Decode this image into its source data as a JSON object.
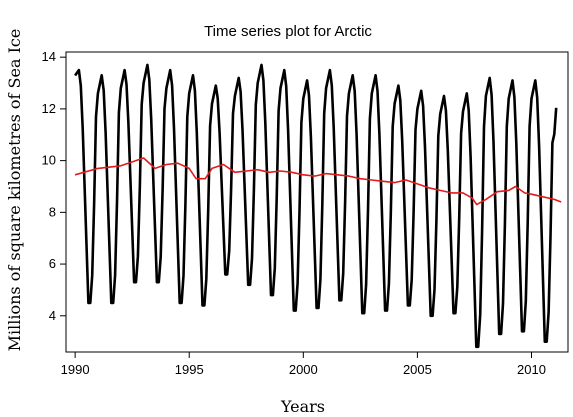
{
  "chart_data": {
    "type": "line",
    "title": "Time series plot for Arctic",
    "xlabel": "Years",
    "ylabel": "Millions of square kilometres of Sea Ice",
    "xlim": [
      1989.6,
      2011.6
    ],
    "ylim": [
      2.6,
      14.2
    ],
    "x_ticks": [
      "1990",
      "1995",
      "2000",
      "2005",
      "2010"
    ],
    "y_ticks": [
      "4",
      "6",
      "8",
      "10",
      "12",
      "14"
    ],
    "grid": false,
    "series": [
      {
        "color": "#000000",
        "start_year": 1990,
        "monthly_max_by_year": [
          13.5,
          13.3,
          13.5,
          13.7,
          13.5,
          13.3,
          12.9,
          13.2,
          13.7,
          13.5,
          13.1,
          13.5,
          13.3,
          13.3,
          12.9,
          12.7,
          12.5,
          12.6,
          13.2,
          13.1,
          13.1,
          12.4
        ],
        "monthly_min_by_year": [
          4.5,
          4.5,
          5.3,
          5.3,
          4.5,
          4.4,
          5.6,
          5.2,
          4.8,
          4.2,
          4.3,
          4.6,
          4.1,
          4.2,
          4.4,
          4.0,
          4.1,
          2.8,
          3.3,
          3.4,
          3.0,
          null
        ],
        "end_value": 12.4,
        "end_x": 2011.15
      },
      {
        "color": "#e31a1c",
        "points": [
          [
            1990,
            9.45
          ],
          [
            1991,
            9.7
          ],
          [
            1992,
            9.8
          ],
          [
            1993,
            10.1
          ],
          [
            1993.5,
            9.7
          ],
          [
            1994,
            9.85
          ],
          [
            1994.5,
            9.9
          ],
          [
            1995,
            9.7
          ],
          [
            1995.3,
            9.3
          ],
          [
            1995.7,
            9.3
          ],
          [
            1996,
            9.7
          ],
          [
            1996.5,
            9.85
          ],
          [
            1997,
            9.55
          ],
          [
            1997.5,
            9.6
          ],
          [
            1998,
            9.65
          ],
          [
            1998.5,
            9.55
          ],
          [
            1999,
            9.6
          ],
          [
            1999.5,
            9.55
          ],
          [
            2000,
            9.45
          ],
          [
            2000.5,
            9.4
          ],
          [
            2001,
            9.5
          ],
          [
            2001.5,
            9.45
          ],
          [
            2002,
            9.4
          ],
          [
            2002.5,
            9.3
          ],
          [
            2003,
            9.25
          ],
          [
            2003.5,
            9.2
          ],
          [
            2004,
            9.15
          ],
          [
            2004.5,
            9.25
          ],
          [
            2005,
            9.1
          ],
          [
            2005.5,
            8.95
          ],
          [
            2006,
            8.85
          ],
          [
            2006.5,
            8.75
          ],
          [
            2007,
            8.75
          ],
          [
            2007.4,
            8.55
          ],
          [
            2007.6,
            8.3
          ],
          [
            2008,
            8.5
          ],
          [
            2008.5,
            8.8
          ],
          [
            2009,
            8.85
          ],
          [
            2009.3,
            9.0
          ],
          [
            2009.7,
            8.75
          ],
          [
            2010,
            8.7
          ],
          [
            2010.5,
            8.6
          ],
          [
            2011,
            8.5
          ],
          [
            2011.3,
            8.4
          ]
        ]
      }
    ]
  }
}
